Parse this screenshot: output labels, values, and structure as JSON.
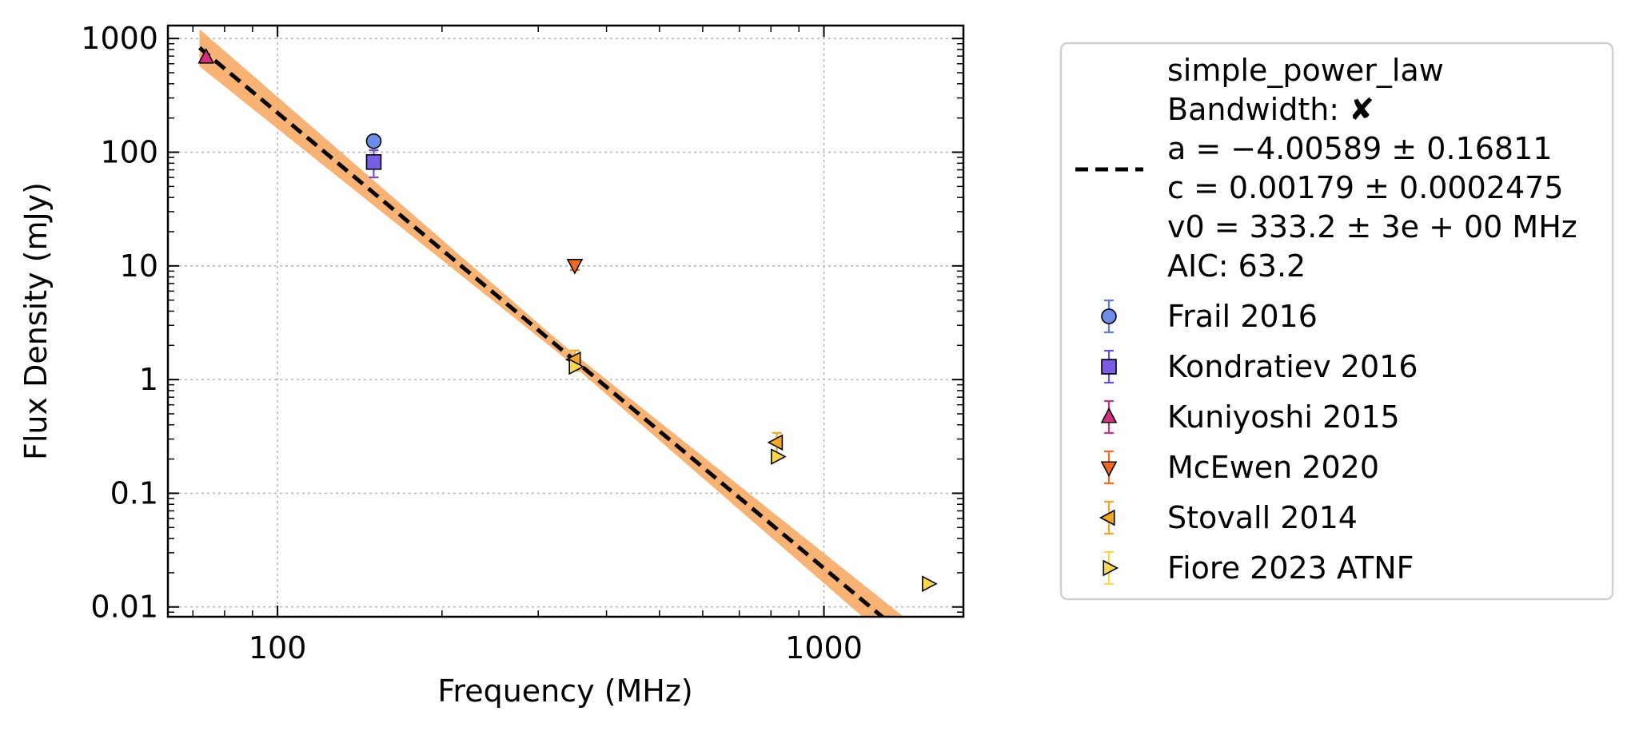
{
  "chart_data": {
    "type": "scatter",
    "title": "",
    "xlabel": "Frequency (MHz)",
    "ylabel": "Flux Density (mJy)",
    "xscale": "log",
    "yscale": "log",
    "xlim": [
      63,
      1800
    ],
    "ylim": [
      0.0082,
      1300
    ],
    "x_ticks": [
      100,
      1000
    ],
    "x_tick_labels": [
      "100",
      "1000"
    ],
    "y_ticks": [
      0.01,
      0.1,
      1,
      10,
      100,
      1000
    ],
    "y_tick_labels": [
      "0.01",
      "0.1",
      "1",
      "10",
      "100",
      "1000"
    ],
    "grid": true,
    "legend_position": "outside-right",
    "fit": {
      "label_lines": [
        "simple_power_law",
        "Bandwidth: ✘",
        "a = −4.00589 ± 0.16811",
        "c = 0.00179 ± 0.0002475",
        "v0 = 333.2 ± 3e + 00 MHz",
        "AIC: 63.2"
      ],
      "a": -4.00589,
      "c": 0.00179,
      "v0": 333.2,
      "color": "#000000",
      "band_color": "#f7a55a"
    },
    "series": [
      {
        "name": "Frail 2016",
        "marker": "circle",
        "color": "#6b8fe8",
        "errcolor": "#5a7bdd",
        "points": [
          {
            "x": 150,
            "y": 125,
            "yerr_low": 0,
            "yerr_high": 0
          }
        ]
      },
      {
        "name": "Kondratiev 2016",
        "marker": "square",
        "color": "#7b5ce6",
        "errcolor": "#6a4fe0",
        "points": [
          {
            "x": 150,
            "y": 82,
            "yerr_low": 22,
            "yerr_high": 22
          }
        ]
      },
      {
        "name": "Kuniyoshi 2015",
        "marker": "triangle-up",
        "color": "#d42e80",
        "errcolor": "#d42e80",
        "points": [
          {
            "x": 74,
            "y": 680,
            "yerr_low": 0,
            "yerr_high": 0
          }
        ]
      },
      {
        "name": "McEwen 2020",
        "marker": "triangle-down",
        "color": "#f26b1d",
        "errcolor": "#f26b1d",
        "points": [
          {
            "x": 350,
            "y": 10.2,
            "yerr_low": 1.0,
            "yerr_high": 1.0
          }
        ]
      },
      {
        "name": "Stovall 2014",
        "marker": "triangle-left",
        "color": "#f5a623",
        "errcolor": "#f5a623",
        "points": [
          {
            "x": 350,
            "y": 1.5,
            "yerr_low": 0.3,
            "yerr_high": 0.3
          },
          {
            "x": 820,
            "y": 0.28,
            "yerr_low": 0.06,
            "yerr_high": 0.06
          }
        ]
      },
      {
        "name": "Fiore 2023 ATNF",
        "marker": "triangle-right",
        "color": "#f9d948",
        "errcolor": "#f9d948",
        "points": [
          {
            "x": 350,
            "y": 1.3,
            "yerr_low": 0,
            "yerr_high": 0
          },
          {
            "x": 820,
            "y": 0.21,
            "yerr_low": 0,
            "yerr_high": 0
          },
          {
            "x": 1550,
            "y": 0.016,
            "yerr_low": 0,
            "yerr_high": 0
          }
        ]
      }
    ]
  }
}
